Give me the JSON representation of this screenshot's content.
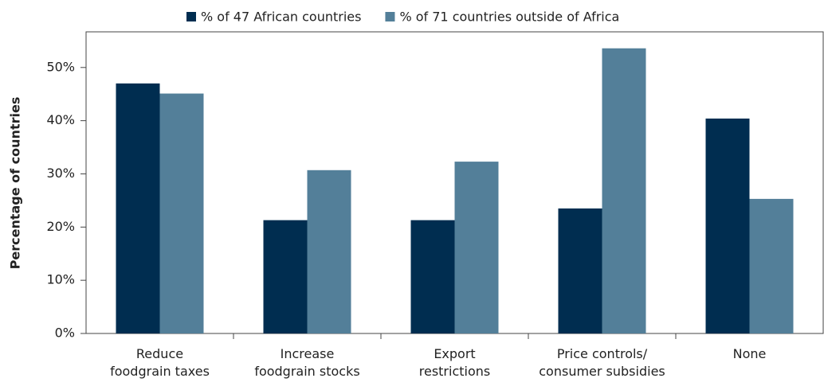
{
  "chart_data": {
    "type": "bar",
    "y_label": "Percentage of countries",
    "categories": [
      "Reduce\nfoodgrain taxes",
      "Increase\nfoodgrain stocks",
      "Export\nrestrictions",
      "Price controls/\nconsumer subsidies",
      "None"
    ],
    "series": [
      {
        "name": "% of 47 African countries",
        "color": "#002d50",
        "values": [
          47.0,
          21.3,
          21.3,
          23.5,
          40.4
        ]
      },
      {
        "name": "% of 71 countries outside of Africa",
        "color": "#537f99",
        "values": [
          45.1,
          30.7,
          32.3,
          53.6,
          25.3
        ]
      }
    ],
    "ylim": [
      0,
      56.7
    ],
    "yticks": [
      {
        "value": 0,
        "label": "0%"
      },
      {
        "value": 10,
        "label": "10%"
      },
      {
        "value": 20,
        "label": "20%"
      },
      {
        "value": 30,
        "label": "30%"
      },
      {
        "value": 40,
        "label": "40%"
      },
      {
        "value": 50,
        "label": "50%"
      }
    ],
    "legend": "top"
  }
}
